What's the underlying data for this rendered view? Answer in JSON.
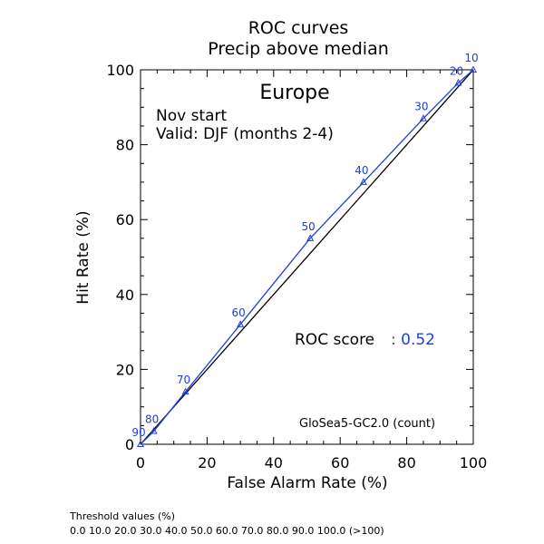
{
  "chart_data": {
    "type": "line",
    "title": "ROC curves",
    "subtitle": "Precip above median",
    "region": "Europe",
    "start_text": "Nov start",
    "valid_text": "Valid: DJF (months 2-4)",
    "xlabel": "False Alarm Rate (%)",
    "ylabel": "Hit Rate (%)",
    "xlim": [
      0,
      100
    ],
    "ylim": [
      0,
      100
    ],
    "x_ticks": [
      "0",
      "20",
      "40",
      "60",
      "80",
      "100"
    ],
    "y_ticks": [
      "0",
      "20",
      "40",
      "60",
      "80",
      "100"
    ],
    "grid": false,
    "score_label": "ROC score",
    "score_value": ": 0.52",
    "model_label": "GloSea5-GC2.0 (count)",
    "threshold_title": "Threshold values (%)",
    "threshold_values": "0.0 10.0 20.0 30.0 40.0 50.0 60.0 70.0 80.0 90.0 100.0 (>100)",
    "diagonal": {
      "x": [
        0,
        100
      ],
      "y": [
        0,
        100
      ]
    },
    "series": [
      {
        "color": "#1f3fd8",
        "x": [
          0,
          4,
          13.5,
          30,
          51,
          67,
          85,
          95.5,
          100
        ],
        "y": [
          0,
          3.5,
          14,
          32,
          55,
          70,
          87,
          96.5,
          100
        ],
        "labels": [
          "90",
          "80",
          "70",
          "60",
          "50",
          "40",
          "30",
          "20",
          "10"
        ]
      }
    ]
  }
}
